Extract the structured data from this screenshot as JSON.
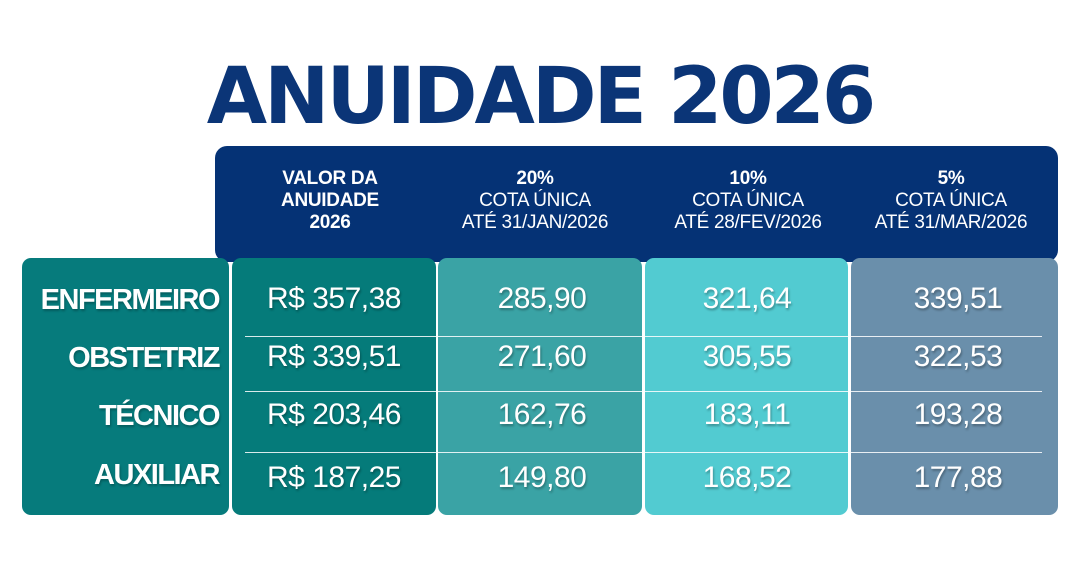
{
  "title": "ANUIDADE 2026",
  "header": {
    "col1": [
      "VALOR DA",
      "ANUIDADE",
      "2026"
    ],
    "col2": {
      "pct": "20%",
      "line1": "COTA ÚNICA",
      "line2": "ATÉ 31/JAN/2026"
    },
    "col3": {
      "pct": "10%",
      "line1": "COTA ÚNICA",
      "line2": "ATÉ 28/FEV/2026"
    },
    "col4": {
      "pct": "5%",
      "line1": "COTA ÚNICA",
      "line2": "ATÉ 31/MAR/2026"
    }
  },
  "rows": [
    {
      "label": "ENFERMEIRO",
      "full": "R$ 357,38",
      "p20": "285,90",
      "p10": "321,64",
      "p5": "339,51"
    },
    {
      "label": "OBSTETRIZ",
      "full": "R$ 339,51",
      "p20": "271,60",
      "p10": "305,55",
      "p5": "322,53"
    },
    {
      "label": "TÉCNICO",
      "full": "R$ 203,46",
      "p20": "162,76",
      "p10": "183,11",
      "p5": "193,28"
    },
    {
      "label": "AUXILIAR",
      "full": "R$ 187,25",
      "p20": "149,80",
      "p10": "168,52",
      "p5": "177,88"
    }
  ],
  "colors": {
    "navy": "#053275",
    "label_col": "#067b7c",
    "col1": "#057b7a",
    "col2": "#3aa3a5",
    "col3": "#52cbd1",
    "col4": "#6a8fab"
  }
}
